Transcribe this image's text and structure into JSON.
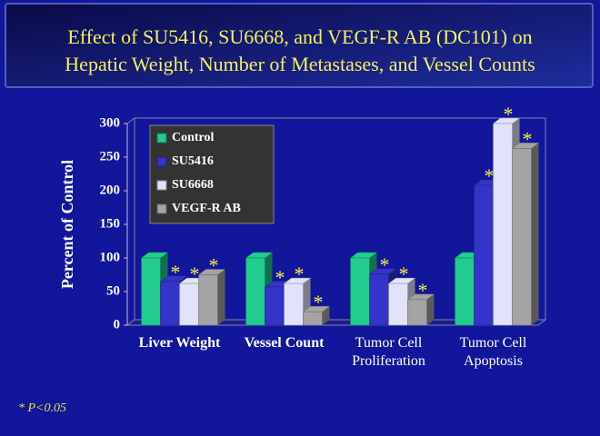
{
  "chart_data": {
    "type": "bar3d",
    "title": [
      "Effect of SU5416, SU6668, and VEGF-R AB (DC101) on",
      "Hepatic Weight, Number of Metastases, and Vessel Counts"
    ],
    "y_label": "Percent of Control",
    "categories": [
      "Liver Weight",
      "Vessel Count",
      "Tumor Cell Proliferation",
      "Tumor Cell Apoptosis"
    ],
    "series": [
      {
        "name": "Control",
        "color": "#22cc8e",
        "values": [
          100,
          100,
          100,
          100
        ]
      },
      {
        "name": "SU5416",
        "color": "#3434c8",
        "values": [
          65,
          57,
          76,
          208
        ],
        "value_labels": [
          "*",
          "*",
          "*",
          "*"
        ]
      },
      {
        "name": "SU6668",
        "color": "#e2e2fb",
        "values": [
          62,
          62,
          62,
          300
        ],
        "value_labels": [
          "*",
          "*",
          "*",
          "*"
        ]
      },
      {
        "name": "VEGF-R AB",
        "color": "#a4a4a4",
        "values": [
          75,
          20,
          38,
          263
        ],
        "value_labels": [
          "*",
          "*",
          "*",
          "*"
        ]
      }
    ],
    "ylim": [
      0,
      300
    ],
    "yticks": [
      0,
      50,
      100,
      150,
      200,
      250,
      300
    ],
    "legend": "upper left",
    "footnote": "* P<0.05"
  }
}
